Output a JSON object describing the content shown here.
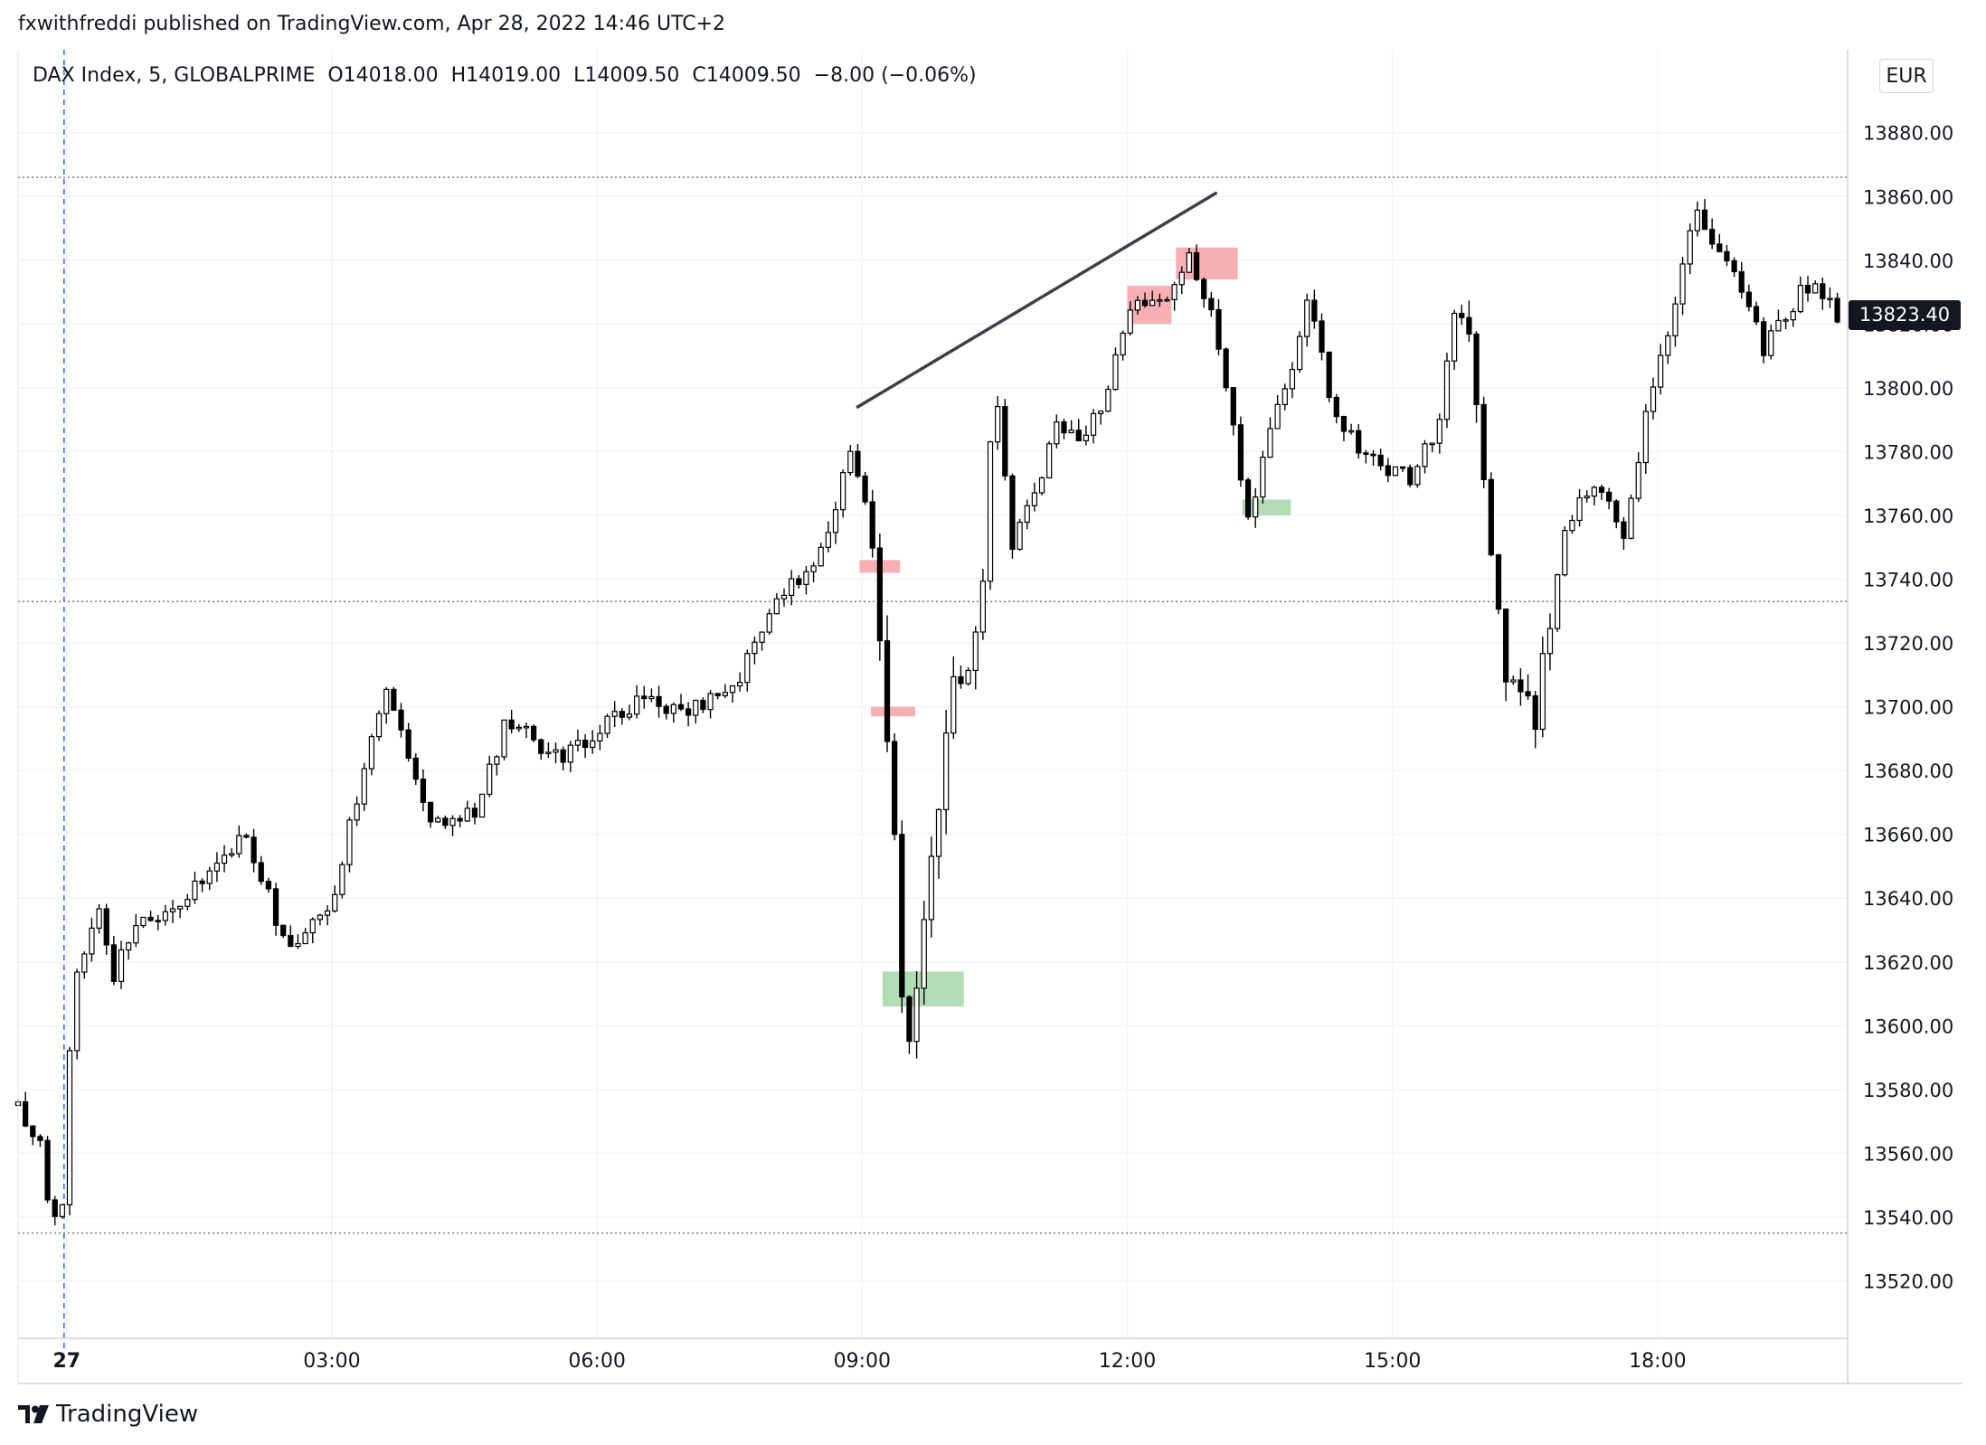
{
  "header": {
    "publisher": "fxwithfreddi published on TradingView.com, Apr 28, 2022 14:46 UTC+2",
    "symbol_info": "DAX Index, 5, GLOBALPRIME  O14018.00  H14019.00  L14009.50  C14009.50  −8.00 (−0.06%)"
  },
  "currency": "EUR",
  "last_price_label": "13823.40",
  "brand": {
    "name": "TradingView",
    "logo_icon": "tradingview-logo-icon"
  },
  "colors": {
    "bullish_body": "#ffffff",
    "bearish_body": "#000000",
    "wick": "#000000",
    "supply_zone": "#f7a1a7",
    "demand_zone": "#a5d6a7",
    "trendline": "#3d3f4a",
    "session_divider": "#2962ff",
    "grid": "#f0f3fa"
  },
  "chart_data": {
    "type": "candlestick",
    "timeframe": "5",
    "y_axis": {
      "ticks": [
        13880,
        13860,
        13840,
        13820,
        13800,
        13780,
        13760,
        13740,
        13720,
        13700,
        13680,
        13660,
        13640,
        13620,
        13600,
        13580,
        13560,
        13540,
        13520
      ],
      "tick_labels": [
        "13880.00",
        "13860.00",
        "13840.00",
        "13820.00",
        "13800.00",
        "13780.00",
        "13760.00",
        "13740.00",
        "13720.00",
        "13700.00",
        "13680.00",
        "13660.00",
        "13640.00",
        "13620.00",
        "13600.00",
        "13580.00",
        "13560.00",
        "13540.00",
        "13520.00"
      ],
      "range": [
        13502,
        13906
      ]
    },
    "x_axis": {
      "tick_labels": [
        "27",
        "03:00",
        "06:00",
        "09:00",
        "12:00",
        "15:00",
        "18:00"
      ],
      "tick_times_h": [
        0,
        3,
        6,
        9,
        12,
        15,
        18
      ],
      "range_h": [
        -0.55,
        20.15
      ]
    },
    "horizontal_levels": [
      13866,
      13733,
      13535
    ],
    "session_divider_time_h": -0.03,
    "trendline": {
      "start": {
        "t": -0.05,
        "price": 13794
      },
      "end": {
        "t": 4.0,
        "price": 13861
      },
      "anchor_start_h": 9.0
    },
    "zones": [
      {
        "kind": "supply",
        "t_start": 8.97,
        "t_end": 9.43,
        "top": 13746,
        "bottom": 13742
      },
      {
        "kind": "supply",
        "t_start": 9.1,
        "t_end": 9.6,
        "top": 13700,
        "bottom": 13697
      },
      {
        "kind": "demand",
        "t_start": 9.23,
        "t_end": 10.15,
        "top": 13617,
        "bottom": 13606
      },
      {
        "kind": "supply",
        "t_start": 12.0,
        "t_end": 12.5,
        "top": 13832,
        "bottom": 13820
      },
      {
        "kind": "supply",
        "t_start": 12.55,
        "t_end": 13.25,
        "top": 13844,
        "bottom": 13834
      },
      {
        "kind": "demand",
        "t_start": 13.3,
        "t_end": 13.85,
        "top": 13765,
        "bottom": 13760
      }
    ],
    "anchors": [
      [
        -0.55,
        13575
      ],
      [
        -0.3,
        13565
      ],
      [
        -0.2,
        13540
      ],
      [
        -0.05,
        13543
      ],
      [
        0.0,
        13580
      ],
      [
        0.1,
        13615
      ],
      [
        0.35,
        13640
      ],
      [
        0.5,
        13615
      ],
      [
        0.8,
        13630
      ],
      [
        1.5,
        13645
      ],
      [
        2.0,
        13660
      ],
      [
        2.5,
        13625
      ],
      [
        3.0,
        13640
      ],
      [
        3.3,
        13673
      ],
      [
        3.6,
        13705
      ],
      [
        4.1,
        13665
      ],
      [
        4.6,
        13665
      ],
      [
        5.0,
        13697
      ],
      [
        5.5,
        13683
      ],
      [
        6.0,
        13692
      ],
      [
        6.5,
        13703
      ],
      [
        7.0,
        13699
      ],
      [
        7.5,
        13703
      ],
      [
        8.0,
        13733
      ],
      [
        8.5,
        13745
      ],
      [
        8.9,
        13783
      ],
      [
        9.15,
        13745
      ],
      [
        9.3,
        13685
      ],
      [
        9.4,
        13648
      ],
      [
        9.5,
        13578
      ],
      [
        9.6,
        13615
      ],
      [
        9.8,
        13652
      ],
      [
        10.05,
        13712
      ],
      [
        10.3,
        13718
      ],
      [
        10.5,
        13802
      ],
      [
        10.7,
        13752
      ],
      [
        10.9,
        13762
      ],
      [
        11.2,
        13787
      ],
      [
        11.5,
        13785
      ],
      [
        11.8,
        13798
      ],
      [
        12.0,
        13826
      ],
      [
        12.4,
        13826
      ],
      [
        12.7,
        13841
      ],
      [
        12.95,
        13822
      ],
      [
        13.1,
        13806
      ],
      [
        13.35,
        13755
      ],
      [
        13.6,
        13789
      ],
      [
        13.8,
        13799
      ],
      [
        14.05,
        13832
      ],
      [
        14.3,
        13794
      ],
      [
        14.6,
        13783
      ],
      [
        14.8,
        13777
      ],
      [
        15.0,
        13773
      ],
      [
        15.2,
        13772
      ],
      [
        15.5,
        13787
      ],
      [
        15.7,
        13822
      ],
      [
        15.85,
        13818
      ],
      [
        16.1,
        13751
      ],
      [
        16.3,
        13700
      ],
      [
        16.5,
        13710
      ],
      [
        16.6,
        13695
      ],
      [
        16.9,
        13748
      ],
      [
        17.1,
        13765
      ],
      [
        17.4,
        13771
      ],
      [
        17.6,
        13753
      ],
      [
        17.85,
        13788
      ],
      [
        18.0,
        13806
      ],
      [
        18.2,
        13825
      ],
      [
        18.4,
        13856
      ],
      [
        18.6,
        13848
      ],
      [
        18.9,
        13835
      ],
      [
        19.2,
        13813
      ],
      [
        19.4,
        13822
      ],
      [
        19.7,
        13832
      ],
      [
        20.05,
        13822
      ]
    ],
    "candle_interval_min": 5
  }
}
